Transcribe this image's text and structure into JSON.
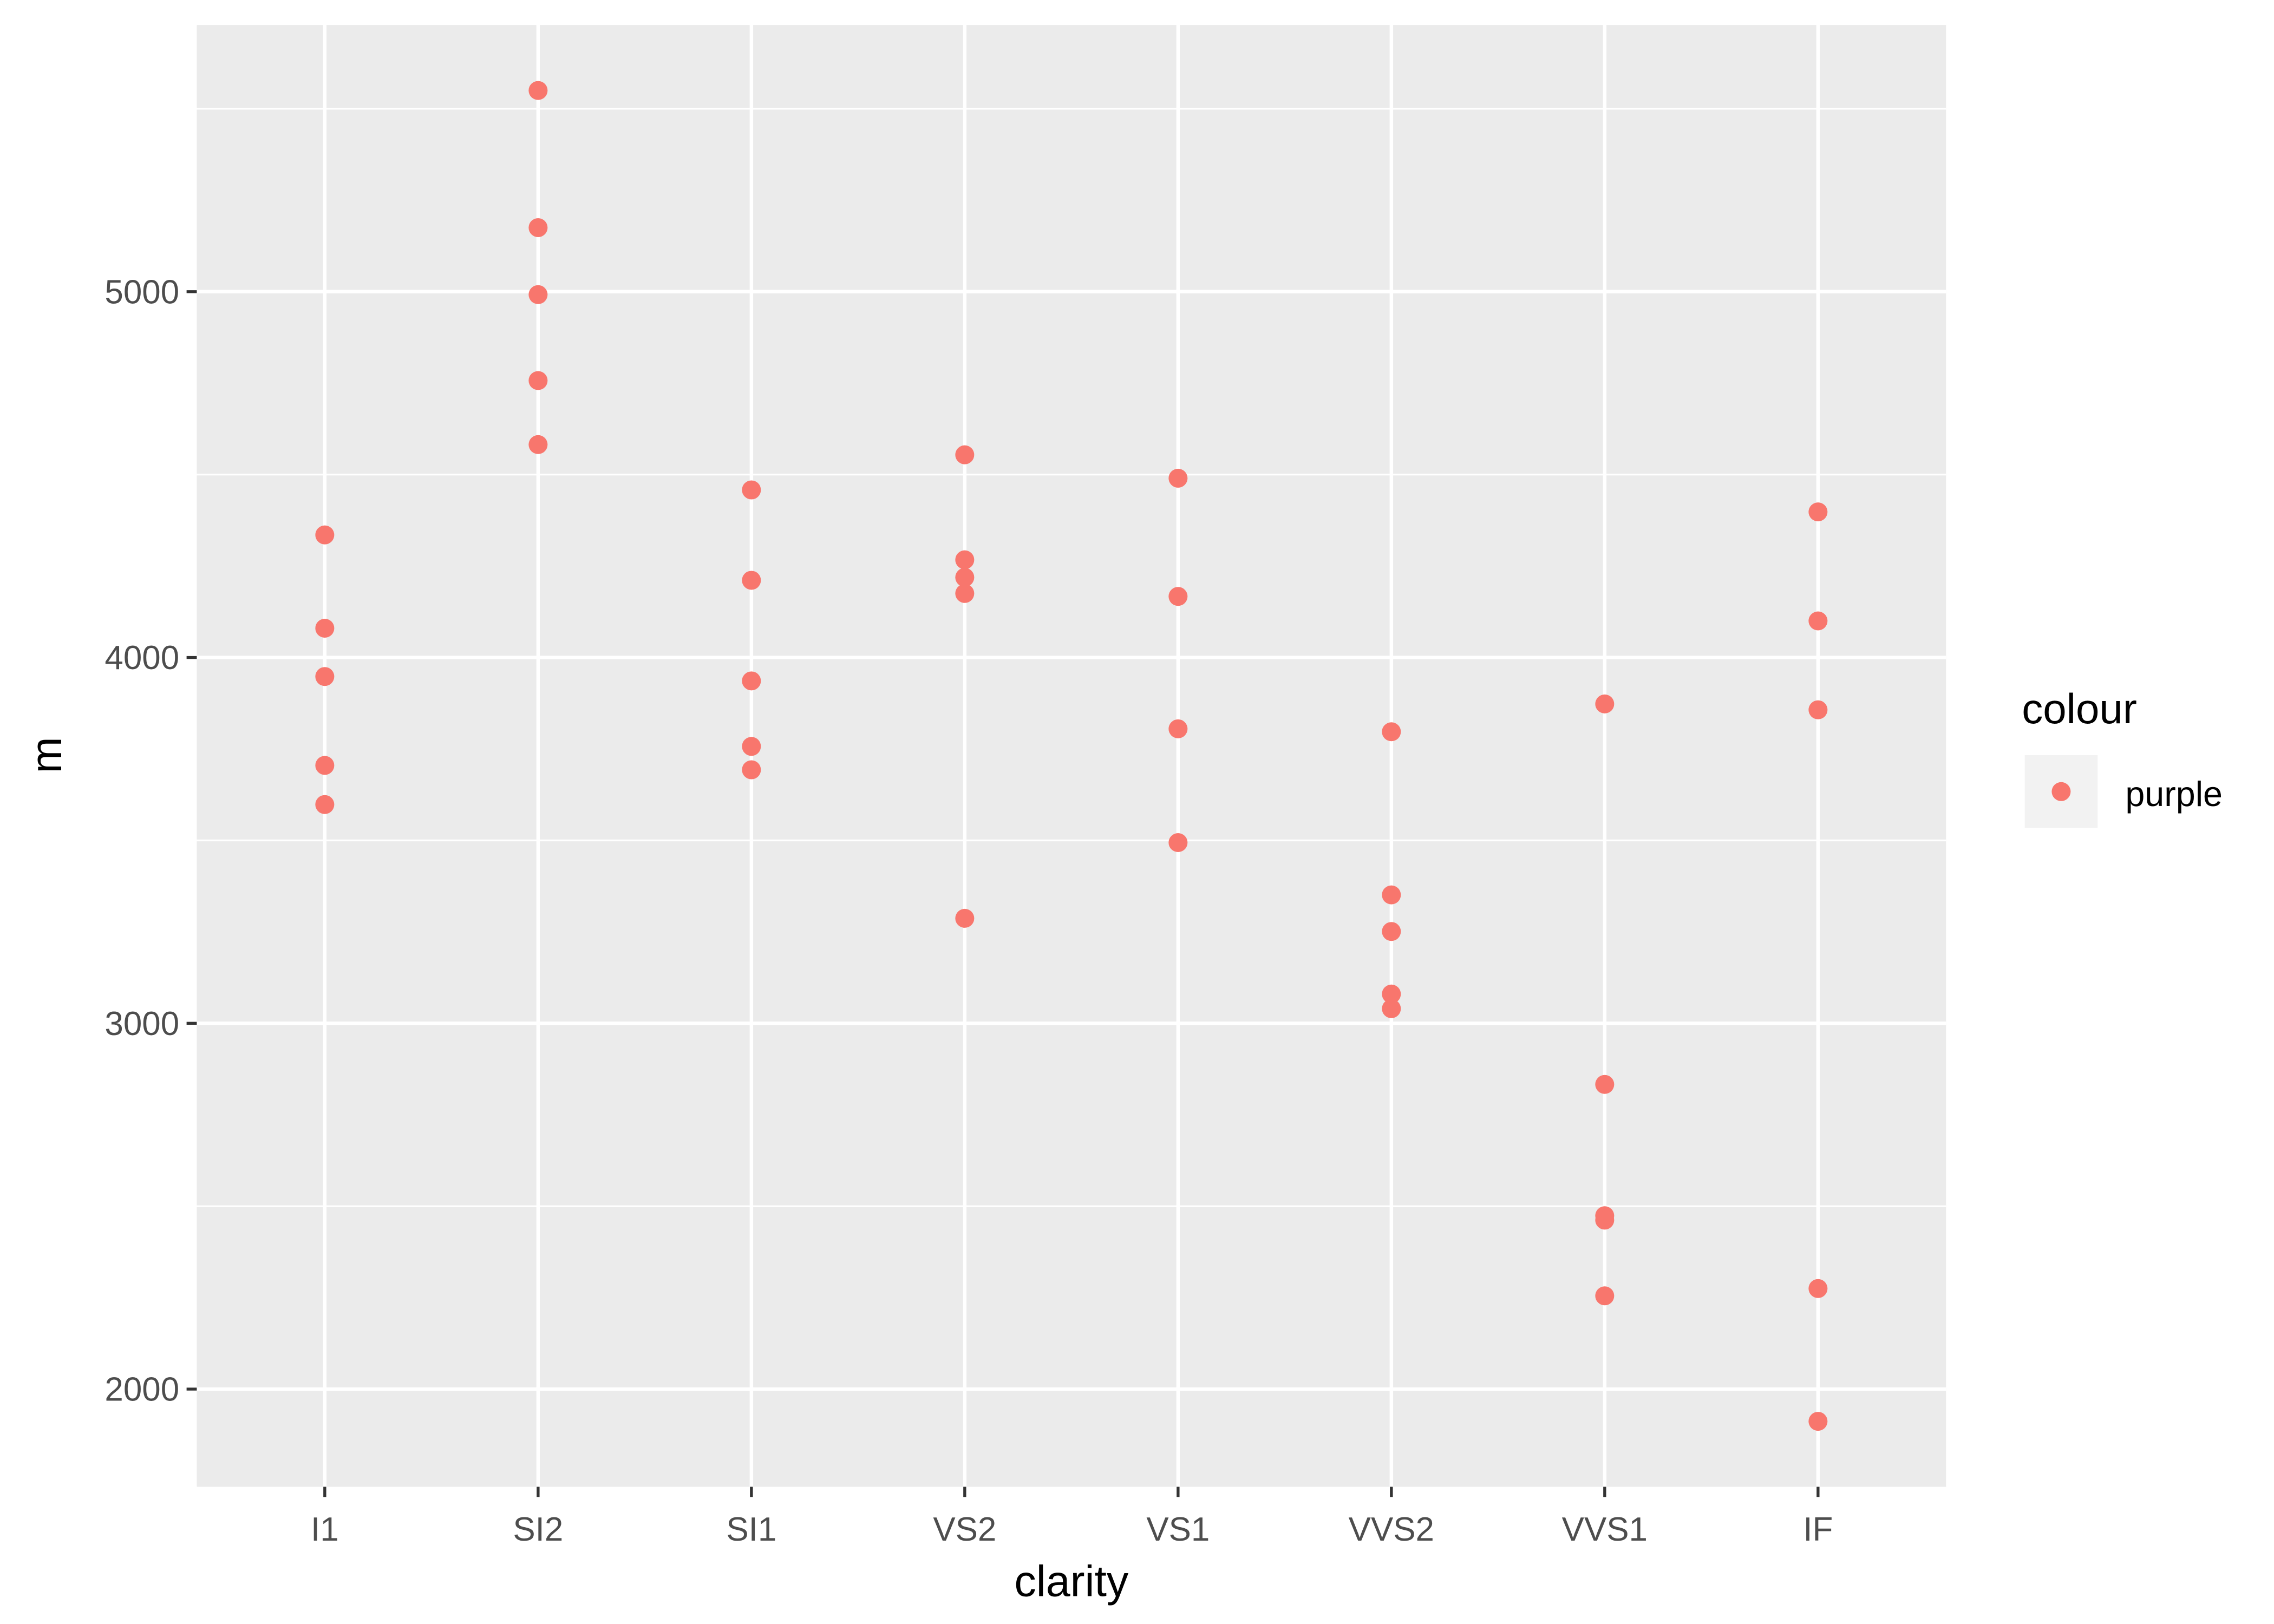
{
  "chart_data": {
    "type": "scatter",
    "title": "",
    "xlabel": "clarity",
    "ylabel": "m",
    "categories": [
      "I1",
      "SI2",
      "SI1",
      "VS2",
      "VS1",
      "VVS2",
      "VVS1",
      "IF"
    ],
    "ylim": [
      1733,
      5729
    ],
    "yticks": [
      2000,
      3000,
      4000,
      5000
    ],
    "grid": true,
    "point_color": "#F8766D",
    "panel_background": "#EBEBEB",
    "legend": {
      "title": "colour",
      "placement": "right",
      "entries": [
        "purple"
      ]
    },
    "points": {
      "I1": [
        4335,
        4080,
        3948,
        3705,
        3598
      ],
      "SI2": [
        5550,
        5175,
        4992,
        4757,
        4582
      ],
      "SI1": [
        4458,
        4211,
        3936,
        3757,
        3693
      ],
      "VS2": [
        4554,
        4267,
        4219,
        4175,
        3287
      ],
      "VS1": [
        4490,
        4167,
        3805,
        3494
      ],
      "VVS2": [
        3797,
        3351,
        3251,
        3080,
        3040
      ],
      "VVS1": [
        3873,
        2833,
        2474,
        2462,
        2255
      ],
      "IF": [
        4398,
        4100,
        3857,
        2275,
        1912
      ]
    }
  }
}
